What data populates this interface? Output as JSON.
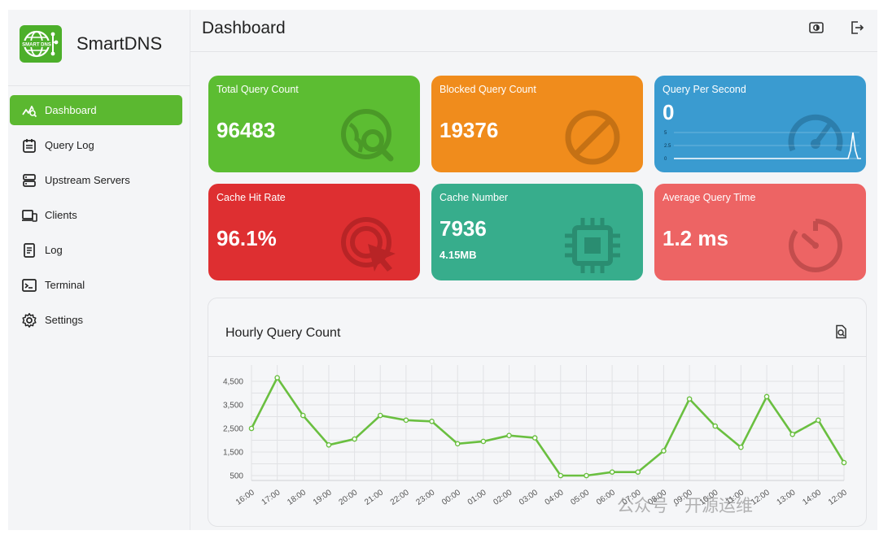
{
  "brand": {
    "name": "SmartDNS",
    "logo_text": "SMART DNS"
  },
  "header": {
    "title": "Dashboard",
    "theme_icon": "theme-toggle-icon",
    "logout_icon": "logout-icon"
  },
  "sidebar": {
    "items": [
      {
        "label": "Dashboard",
        "icon": "chart-line-icon",
        "active": true
      },
      {
        "label": "Query Log",
        "icon": "calendar-list-icon",
        "active": false
      },
      {
        "label": "Upstream Servers",
        "icon": "server-icon",
        "active": false
      },
      {
        "label": "Clients",
        "icon": "devices-icon",
        "active": false
      },
      {
        "label": "Log",
        "icon": "document-icon",
        "active": false
      },
      {
        "label": "Terminal",
        "icon": "terminal-icon",
        "active": false
      },
      {
        "label": "Settings",
        "icon": "gear-icon",
        "active": false
      }
    ]
  },
  "cards": {
    "total_query": {
      "label": "Total Query Count",
      "value": "96483",
      "color": "#5cbd32",
      "icon": "search-globe-icon"
    },
    "blocked_query": {
      "label": "Blocked Query Count",
      "value": "19376",
      "color": "#f08c1c",
      "icon": "block-icon"
    },
    "qps": {
      "label": "Query Per Second",
      "value": "0",
      "color": "#3a9bd0",
      "icon": "speedometer-icon",
      "spark_ticks": [
        "5",
        "2.5",
        "0"
      ]
    },
    "cache_hit": {
      "label": "Cache Hit Rate",
      "value": "96.1%",
      "color": "#de2f31",
      "icon": "target-cursor-icon"
    },
    "cache_number": {
      "label": "Cache Number",
      "value": "7936",
      "sub": "4.15MB",
      "color": "#37ad8c",
      "icon": "chip-icon"
    },
    "avg_time": {
      "label": "Average Query Time",
      "value": "1.2 ms",
      "color": "#ed6464",
      "icon": "timer-icon"
    }
  },
  "hourly_panel": {
    "title": "Hourly Query Count",
    "search_icon": "zoom-document-icon"
  },
  "watermark": "公众号 · 开源运维",
  "chart_data": {
    "type": "line",
    "title": "Hourly Query Count",
    "categories": [
      "16:00",
      "17:00",
      "18:00",
      "19:00",
      "20:00",
      "21:00",
      "22:00",
      "23:00",
      "00:00",
      "01:00",
      "02:00",
      "03:00",
      "04:00",
      "05:00",
      "06:00",
      "07:00",
      "08:00",
      "09:00",
      "10:00",
      "11:00",
      "12:00",
      "13:00",
      "14:00",
      "12:00"
    ],
    "values": [
      2500,
      4650,
      3050,
      1800,
      2050,
      3050,
      2850,
      2800,
      1850,
      1950,
      2200,
      2100,
      500,
      500,
      650,
      650,
      1550,
      3750,
      2600,
      1700,
      3850,
      2250,
      2850,
      1050
    ],
    "yticks": [
      500,
      1500,
      2500,
      3500,
      4500
    ],
    "ytick_labels": [
      "500",
      "1,500",
      "2,500",
      "3,500",
      "4,500"
    ],
    "ylim": [
      0,
      4900
    ],
    "color": "#6abf40",
    "grid": true
  }
}
